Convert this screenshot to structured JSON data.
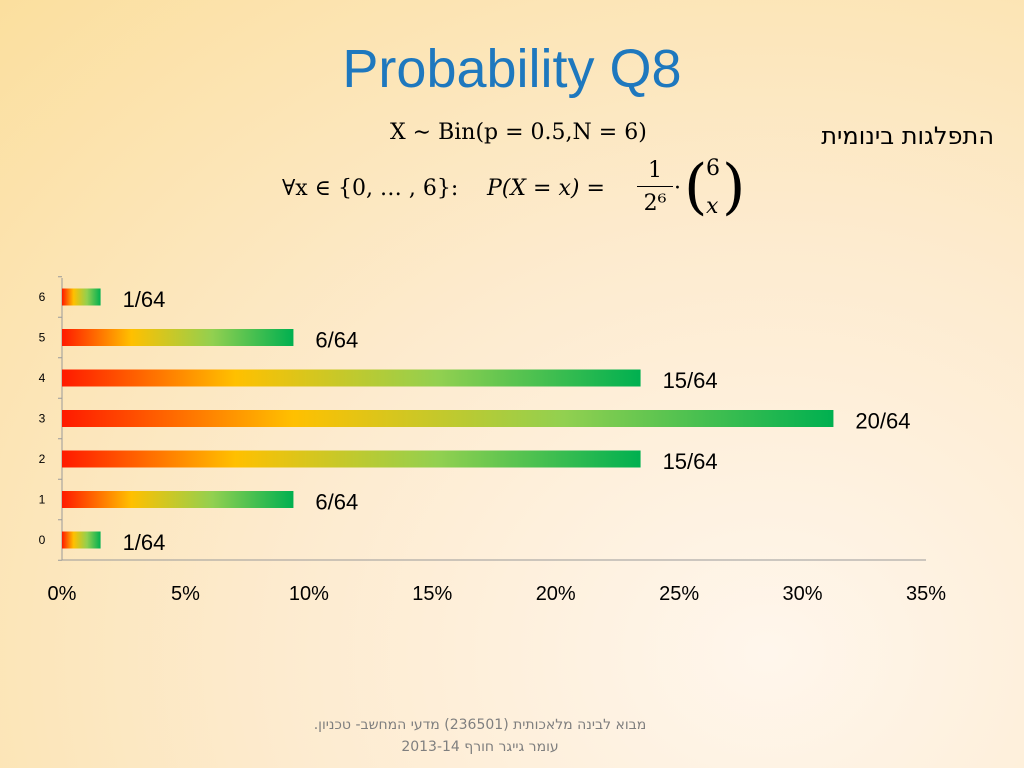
{
  "slide": {
    "title": "Probability Q8",
    "hebrew_label": "התפלגות בינומית",
    "formula_line1": "X ∼ Bin(p = 0.5,N = 6)",
    "formula_line2_prefix": "∀x ∈ {0, … , 6}:",
    "formula_line2_lhs": "P(X = x) = ",
    "frac_num": "1",
    "frac_den": "2⁶",
    "cdot": "·",
    "binom_top": "6",
    "binom_bottom": "x",
    "footer_line1": "מבוא לבינה מלאכותית (236501)  מדעי המחשב- טכניון.",
    "footer_line2": "עומר גייגר חורף  2013-14"
  },
  "chart_data": {
    "type": "bar",
    "orientation": "horizontal",
    "categories": [
      "0",
      "1",
      "2",
      "3",
      "4",
      "5",
      "6"
    ],
    "values": [
      1.5625,
      9.375,
      23.4375,
      31.25,
      23.4375,
      9.375,
      1.5625
    ],
    "data_labels": [
      "1/64",
      "6/64",
      "15/64",
      "20/64",
      "15/64",
      "6/64",
      "1/64"
    ],
    "xlim": [
      0,
      35
    ],
    "xticks": [
      "0%",
      "5%",
      "10%",
      "15%",
      "20%",
      "25%",
      "30%",
      "35%"
    ],
    "xtick_values": [
      0,
      5,
      10,
      15,
      20,
      25,
      30,
      35
    ],
    "bar_gradient": [
      "#ff1a00",
      "#ffc000",
      "#92d050",
      "#00b050"
    ],
    "grid": false,
    "legend": "none"
  }
}
